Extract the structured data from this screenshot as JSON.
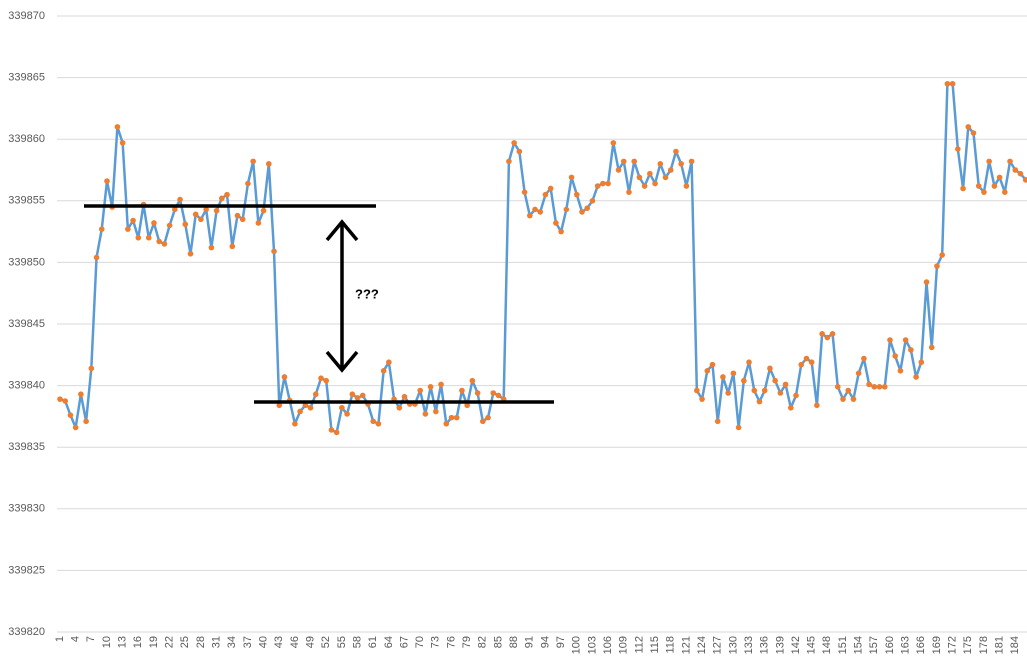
{
  "chart_data": {
    "type": "line",
    "annotation": "???",
    "color": "#5b9bd5",
    "marker_color": "#ed7d31",
    "ylim": [
      339820,
      339870
    ],
    "yticks": [
      339820,
      339825,
      339830,
      339835,
      339840,
      339845,
      339850,
      339855,
      339860,
      339865,
      339870
    ],
    "grid": true,
    "categories": [
      1,
      null,
      null,
      4,
      null,
      null,
      7,
      null,
      null,
      10,
      null,
      null,
      13,
      null,
      null,
      16,
      null,
      null,
      19,
      null,
      null,
      22,
      null,
      null,
      25,
      null,
      null,
      28,
      null,
      null,
      31,
      null,
      null,
      34,
      null,
      null,
      37,
      null,
      null,
      40,
      null,
      null,
      43,
      null,
      null,
      46,
      null,
      null,
      49,
      null,
      null,
      52,
      null,
      null,
      55,
      null,
      null,
      58,
      null,
      null,
      61,
      null,
      null,
      64,
      null,
      null,
      67,
      null,
      null,
      70,
      null,
      null,
      73,
      null,
      null,
      76,
      null,
      null,
      79,
      null,
      null,
      82,
      null,
      null,
      85,
      null,
      null,
      88,
      null,
      null,
      91,
      null,
      null,
      94,
      null,
      null,
      97,
      null,
      null,
      100,
      null,
      null,
      103,
      null,
      null,
      106,
      null,
      null,
      109,
      null,
      null,
      112,
      null,
      null,
      115,
      null,
      null,
      118,
      null,
      null,
      121,
      null,
      null,
      124,
      null,
      null,
      127,
      null,
      null,
      130,
      null,
      null,
      133,
      null,
      null,
      136,
      null,
      null,
      139,
      null,
      null,
      142,
      null,
      null,
      145,
      null,
      null,
      148,
      null,
      null,
      151,
      null,
      null,
      154,
      null,
      null,
      157,
      null,
      null,
      160,
      null,
      null,
      163,
      null,
      null,
      166,
      null,
      null,
      169,
      null,
      null,
      172,
      null,
      null,
      175,
      null,
      null,
      178,
      null,
      null,
      181,
      null,
      null,
      184,
      null,
      null
    ],
    "values": [
      339838.9,
      339838.75,
      339837.6,
      339836.6,
      339839.3,
      339837.1,
      339841.4,
      339850.4,
      339852.7,
      339856.6,
      339854.5,
      339861.0,
      339859.7,
      339852.7,
      339853.4,
      339852.0,
      339854.7,
      339852.0,
      339853.2,
      339851.7,
      339851.5,
      339853.0,
      339854.3,
      339855.1,
      339853.1,
      339850.7,
      339853.9,
      339853.5,
      339854.3,
      339851.2,
      339854.2,
      339855.2,
      339855.5,
      339851.3,
      339853.8,
      339853.5,
      339856.4,
      339858.2,
      339853.2,
      339854.2,
      339858.0,
      339850.9,
      339838.4,
      339840.7,
      339838.8,
      339836.9,
      339837.9,
      339838.4,
      339838.2,
      339839.3,
      339840.6,
      339840.4,
      339836.4,
      339836.2,
      339838.2,
      339837.7,
      339839.3,
      339839.0,
      339839.2,
      339838.5,
      339837.1,
      339836.9,
      339841.2,
      339841.9,
      339838.9,
      339838.2,
      339839.1,
      339838.5,
      339838.5,
      339839.6,
      339837.7,
      339839.9,
      339837.9,
      339840.1,
      339836.9,
      339837.4,
      339837.4,
      339839.6,
      339838.4,
      339840.4,
      339839.4,
      339837.1,
      339837.4,
      339839.4,
      339839.2,
      339838.9,
      339858.2,
      339859.7,
      339859.0,
      339855.7,
      339853.8,
      339854.3,
      339854.1,
      339855.5,
      339856.0,
      339853.2,
      339852.5,
      339854.3,
      339856.9,
      339855.5,
      339854.1,
      339854.4,
      339855.0,
      339856.2,
      339856.4,
      339856.4,
      339859.7,
      339857.5,
      339858.2,
      339855.7,
      339858.2,
      339856.9,
      339856.2,
      339857.2,
      339856.4,
      339858.0,
      339856.9,
      339857.5,
      339859.0,
      339858.0,
      339856.2,
      339858.2,
      339839.6,
      339838.9,
      339841.2,
      339841.7,
      339837.1,
      339840.7,
      339839.4,
      339841.0,
      339836.6,
      339840.4,
      339841.9,
      339839.6,
      339838.7,
      339839.6,
      339841.4,
      339840.4,
      339839.4,
      339840.1,
      339838.2,
      339839.2,
      339841.7,
      339842.2,
      339841.9,
      339838.4,
      339844.2,
      339843.9,
      339844.2,
      339839.9,
      339838.9,
      339839.6,
      339838.9,
      339841.0,
      339842.2,
      339840.1,
      339839.9,
      339839.9,
      339839.9,
      339843.7,
      339842.4,
      339841.2,
      339843.7,
      339842.9,
      339840.7,
      339841.9,
      339848.4,
      339843.1,
      339849.7,
      339850.6,
      339864.5,
      339864.5,
      339859.2,
      339856.0,
      339861.0,
      339860.5,
      339856.2,
      339855.7,
      339858.2,
      339856.2,
      339856.9,
      339855.7,
      339858.2,
      339857.5,
      339857.2,
      339856.7
    ]
  }
}
